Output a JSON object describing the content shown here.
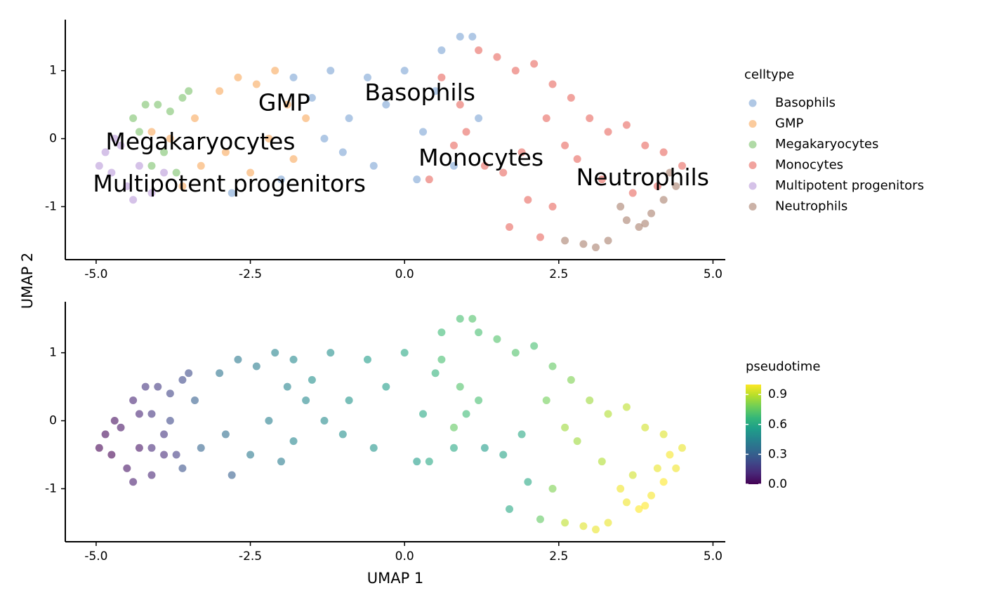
{
  "chart_data": [
    {
      "type": "scatter",
      "ylabel": "UMAP 2",
      "xlim": [
        -5.5,
        5.2
      ],
      "ylim": [
        -1.78,
        1.75
      ],
      "xticks": [
        {
          "value": -5,
          "label": "-5.0"
        },
        {
          "value": -2.5,
          "label": "-2.5"
        },
        {
          "value": 0,
          "label": "0.0"
        },
        2.5,
        {
          "value": 5,
          "label": "5.0"
        }
      ],
      "yticks": [
        -1,
        0,
        1
      ],
      "grid": false,
      "legend": "right",
      "legend_title": "celltype",
      "series": [
        {
          "name": "Basophils",
          "color": "#7ba3d4",
          "x": [
            -1.8,
            -1.5,
            -1.2,
            -0.9,
            -0.6,
            -0.3,
            0,
            0.3,
            0.6,
            0.9,
            1.1,
            -1.0,
            -0.5,
            0.2,
            0.8,
            -2.8,
            -2.0,
            -1.3,
            0.5,
            1.2
          ],
          "y": [
            0.9,
            0.6,
            1.0,
            0.3,
            0.9,
            0.5,
            1.0,
            0.1,
            1.3,
            1.5,
            1.5,
            -0.2,
            -0.4,
            -0.6,
            -0.4,
            -0.8,
            -0.6,
            0.0,
            0.7,
            0.3
          ]
        },
        {
          "name": "GMP",
          "color": "#f9a95b",
          "x": [
            -3.8,
            -3.4,
            -3.0,
            -2.7,
            -2.4,
            -2.1,
            -1.9,
            -1.6,
            -2.9,
            -2.5,
            -3.3,
            -4.1,
            -2.2,
            -1.8,
            -3.6
          ],
          "y": [
            0.0,
            0.3,
            0.7,
            0.9,
            0.8,
            1.0,
            0.5,
            0.3,
            -0.2,
            -0.5,
            -0.4,
            0.1,
            0.0,
            -0.3,
            -0.7
          ]
        },
        {
          "name": "Megakaryocytes",
          "color": "#7cc16a",
          "x": [
            -4.4,
            -4.2,
            -4.0,
            -3.8,
            -3.6,
            -3.5,
            -4.3,
            -3.9,
            -4.1,
            -3.7
          ],
          "y": [
            0.3,
            0.5,
            0.5,
            0.4,
            0.6,
            0.7,
            0.1,
            -0.2,
            -0.4,
            -0.5
          ]
        },
        {
          "name": "Monocytes",
          "color": "#e8655e",
          "x": [
            0.6,
            0.9,
            1.2,
            1.5,
            1.8,
            2.1,
            2.4,
            2.7,
            3.0,
            3.3,
            3.6,
            3.9,
            4.2,
            4.5,
            0.8,
            1.3,
            1.9,
            2.3,
            2.8,
            3.2,
            3.7,
            4.1,
            1.6,
            2.0,
            2.4,
            1.7,
            2.2,
            0.4,
            1.0,
            2.6
          ],
          "y": [
            0.9,
            0.5,
            1.3,
            1.2,
            1.0,
            1.1,
            0.8,
            0.6,
            0.3,
            0.1,
            0.2,
            -0.1,
            -0.2,
            -0.4,
            -0.1,
            -0.4,
            -0.2,
            0.3,
            -0.3,
            -0.6,
            -0.8,
            -0.7,
            -0.5,
            -0.9,
            -1.0,
            -1.3,
            -1.45,
            -0.6,
            0.1,
            -0.1
          ]
        },
        {
          "name": "Multipotent progenitors",
          "color": "#b99ad8",
          "x": [
            -4.95,
            -4.85,
            -4.75,
            -4.6,
            -4.5,
            -4.3,
            -4.1,
            -3.9,
            -4.7,
            -4.4
          ],
          "y": [
            -0.4,
            -0.2,
            -0.5,
            -0.1,
            -0.7,
            -0.4,
            -0.8,
            -0.5,
            0.0,
            -0.9
          ]
        },
        {
          "name": "Neutrophils",
          "color": "#a97e6c",
          "x": [
            2.6,
            2.9,
            3.1,
            3.3,
            3.6,
            3.8,
            4.0,
            4.2,
            4.4,
            3.5,
            3.9,
            4.3
          ],
          "y": [
            -1.5,
            -1.55,
            -1.6,
            -1.5,
            -1.2,
            -1.3,
            -1.1,
            -0.9,
            -0.7,
            -1.0,
            -1.25,
            -0.5
          ]
        }
      ],
      "annotations": [
        {
          "text": "GMP",
          "x": -1.95,
          "y": 0.51
        },
        {
          "text": "Basophils",
          "x": 0.25,
          "y": 0.66
        },
        {
          "text": "Megakaryocytes",
          "x": -3.31,
          "y": -0.06
        },
        {
          "text": "Monocytes",
          "x": 1.24,
          "y": -0.3
        },
        {
          "text": "Neutrophils",
          "x": 3.86,
          "y": -0.59
        },
        {
          "text": "Multipotent progenitors",
          "x": -2.84,
          "y": -0.68
        }
      ]
    },
    {
      "type": "scatter",
      "xlabel": "UMAP 1",
      "xlim": [
        -5.5,
        5.2
      ],
      "ylim": [
        -1.78,
        1.75
      ],
      "xticks": [
        {
          "value": -5,
          "label": "-5.0"
        },
        {
          "value": -2.5,
          "label": "-2.5"
        },
        {
          "value": 0,
          "label": "0.0"
        },
        2.5,
        {
          "value": 5,
          "label": "5.0"
        }
      ],
      "yticks": [
        -1,
        0,
        1
      ],
      "grid": false,
      "colormap": "viridis",
      "colorbar_title": "pseudotime",
      "colorlim": [
        0,
        1
      ],
      "colorticks": [
        {
          "value": 0,
          "label": "0.0"
        },
        0.3,
        0.6,
        0.9
      ],
      "series": [
        {
          "x": [
            -1.8,
            -1.5,
            -1.2,
            -0.9,
            -0.6,
            -0.3,
            0,
            0.3,
            0.6,
            0.9,
            1.1,
            -1.0,
            -0.5,
            0.2,
            0.8,
            -2.8,
            -2.0,
            -1.3,
            0.5,
            1.2,
            -3.8,
            -3.4,
            -3.0,
            -2.7,
            -2.4,
            -2.1,
            -1.9,
            -1.6,
            -2.9,
            -2.5,
            -3.3,
            -4.1,
            -2.2,
            -1.8,
            -3.6,
            -4.4,
            -4.2,
            -4.0,
            -3.8,
            -3.6,
            -3.5,
            -4.3,
            -3.9,
            -4.1,
            -3.7,
            0.6,
            0.9,
            1.2,
            1.5,
            1.8,
            2.1,
            2.4,
            2.7,
            3.0,
            3.3,
            3.6,
            3.9,
            4.2,
            4.5,
            0.8,
            1.3,
            1.9,
            2.3,
            2.8,
            3.2,
            3.7,
            4.1,
            1.6,
            2.0,
            2.4,
            1.7,
            2.2,
            0.4,
            1.0,
            2.6,
            -4.95,
            -4.85,
            -4.75,
            -4.6,
            -4.5,
            -4.3,
            -4.1,
            -3.9,
            -4.7,
            -4.4,
            2.6,
            2.9,
            3.1,
            3.3,
            3.6,
            3.8,
            4.0,
            4.2,
            4.4,
            3.5,
            3.9,
            4.3
          ],
          "y": [
            0.9,
            0.6,
            1.0,
            0.3,
            0.9,
            0.5,
            1.0,
            0.1,
            1.3,
            1.5,
            1.5,
            -0.2,
            -0.4,
            -0.6,
            -0.4,
            -0.8,
            -0.6,
            0.0,
            0.7,
            0.3,
            0.0,
            0.3,
            0.7,
            0.9,
            0.8,
            1.0,
            0.5,
            0.3,
            -0.2,
            -0.5,
            -0.4,
            0.1,
            0.0,
            -0.3,
            -0.7,
            0.3,
            0.5,
            0.5,
            0.4,
            0.6,
            0.7,
            0.1,
            -0.2,
            -0.4,
            -0.5,
            0.9,
            0.5,
            1.3,
            1.2,
            1.0,
            1.1,
            0.8,
            0.6,
            0.3,
            0.1,
            0.2,
            -0.1,
            -0.2,
            -0.4,
            -0.1,
            -0.4,
            -0.2,
            0.3,
            -0.3,
            -0.6,
            -0.8,
            -0.7,
            -0.5,
            -0.9,
            -1.0,
            -1.3,
            -1.45,
            -0.6,
            0.1,
            -0.1,
            -0.4,
            -0.2,
            -0.5,
            -0.1,
            -0.7,
            -0.4,
            -0.8,
            -0.5,
            0.0,
            -0.9,
            -1.5,
            -1.55,
            -1.6,
            -1.5,
            -1.2,
            -1.3,
            -1.1,
            -0.9,
            -0.7,
            -1.0,
            -1.25,
            -0.5
          ],
          "color_values": [
            0.47,
            0.5,
            0.5,
            0.52,
            0.55,
            0.55,
            0.6,
            0.6,
            0.68,
            0.7,
            0.72,
            0.5,
            0.52,
            0.55,
            0.6,
            0.3,
            0.42,
            0.48,
            0.65,
            0.7,
            0.22,
            0.3,
            0.38,
            0.4,
            0.42,
            0.45,
            0.45,
            0.47,
            0.36,
            0.4,
            0.32,
            0.15,
            0.43,
            0.46,
            0.25,
            0.1,
            0.15,
            0.17,
            0.2,
            0.22,
            0.23,
            0.1,
            0.15,
            0.12,
            0.18,
            0.7,
            0.72,
            0.7,
            0.72,
            0.72,
            0.7,
            0.75,
            0.8,
            0.85,
            0.88,
            0.9,
            0.93,
            0.95,
            0.97,
            0.75,
            0.55,
            0.6,
            0.78,
            0.85,
            0.88,
            0.93,
            0.97,
            0.58,
            0.6,
            0.8,
            0.6,
            0.75,
            0.6,
            0.68,
            0.85,
            0.0,
            0.02,
            0.0,
            0.05,
            0.05,
            0.05,
            0.1,
            0.12,
            0.03,
            0.08,
            0.9,
            0.95,
            0.97,
            0.97,
            0.98,
            1.0,
            0.99,
            1.0,
            0.98,
            0.98,
            1.0,
            0.99
          ]
        }
      ]
    }
  ]
}
